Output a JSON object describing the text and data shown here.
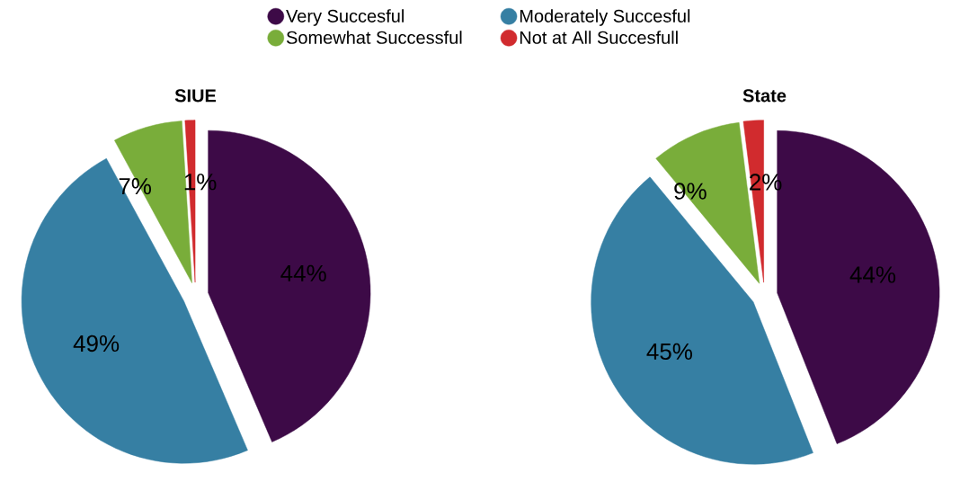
{
  "chart_data": [
    {
      "type": "pie",
      "title": "SIUE",
      "categories": [
        "Very Succesful",
        "Moderately Succesful",
        "Somewhat Successful",
        "Not at All Succesfull"
      ],
      "values": [
        44,
        49,
        7,
        1
      ],
      "value_labels": [
        "44%",
        "49%",
        "7%",
        "1%"
      ],
      "colors": [
        "#3d0a47",
        "#367fa3",
        "#79ad3a",
        "#d12b2e"
      ],
      "legend": "top"
    },
    {
      "type": "pie",
      "title": "State",
      "values": [
        44,
        45,
        9,
        2
      ],
      "value_labels": [
        "44%",
        "45%",
        "9%",
        "2%"
      ],
      "colors": [
        "#3d0a47",
        "#367fa3",
        "#79ad3a",
        "#d12b2e"
      ]
    }
  ]
}
